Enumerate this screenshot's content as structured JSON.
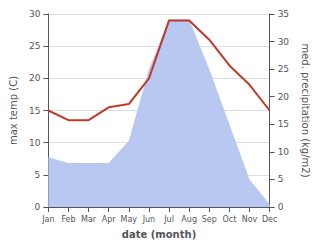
{
  "chart_data": {
    "type": "line",
    "xlabel": "date (month)",
    "ylabel": "max temp (C)",
    "y2label": "med. precipitation (kg/m2)",
    "categories": [
      "Jan",
      "Feb",
      "Mar",
      "Apr",
      "May",
      "Jun",
      "Jul",
      "Aug",
      "Sep",
      "Oct",
      "Nov",
      "Dec"
    ],
    "series": [
      {
        "type": "area",
        "axis": "y2",
        "color": "#b8c8f0",
        "values": [
          9.0,
          8.0,
          8.0,
          8.0,
          12.0,
          25.0,
          34.0,
          34.0,
          25.0,
          15.0,
          5.0,
          0.5
        ]
      },
      {
        "type": "line",
        "color": "#c0392b",
        "values": [
          15.0,
          13.5,
          13.5,
          15.5,
          16.0,
          20.0,
          29.0,
          29.0,
          26.0,
          22.0,
          19.0,
          15.0
        ]
      }
    ],
    "ylim": [
      0,
      30
    ],
    "yticks": [
      0,
      5,
      10,
      15,
      20,
      25,
      30
    ],
    "y2lim": [
      0,
      35
    ],
    "y2ticks": [
      0,
      5,
      10,
      15,
      20,
      25,
      30,
      35
    ],
    "grid": true
  }
}
